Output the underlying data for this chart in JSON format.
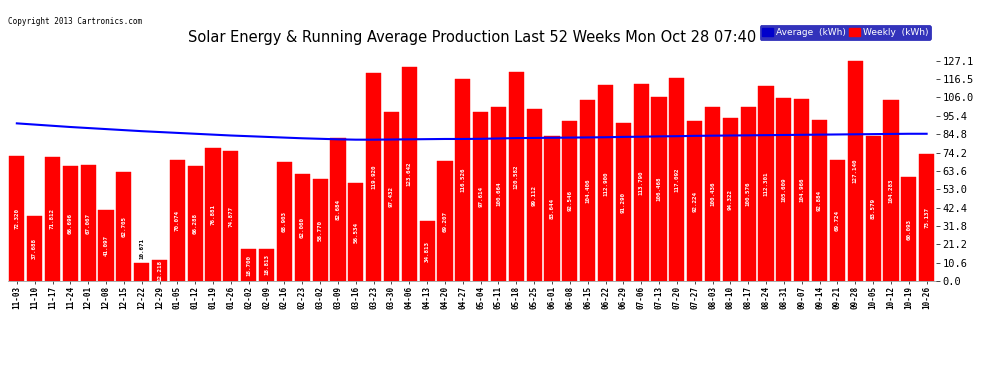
{
  "title": "Solar Energy & Running Average Production Last 52 Weeks Mon Oct 28 07:40",
  "copyright": "Copyright 2013 Cartronics.com",
  "bar_color": "#ff0000",
  "avg_line_color": "#0000ff",
  "background_color": "#ffffff",
  "plot_bg_color": "#ffffff",
  "grid_color": "#b0b0b0",
  "ylabel_right_values": [
    0.0,
    10.6,
    21.2,
    31.8,
    42.4,
    53.0,
    63.6,
    74.2,
    84.8,
    95.4,
    106.0,
    116.5,
    127.1
  ],
  "ylim": [
    0,
    134
  ],
  "legend_labels": [
    "Average  (kWh)",
    "Weekly  (kWh)"
  ],
  "legend_colors": [
    "#0000cc",
    "#ff0000"
  ],
  "categories": [
    "11-03",
    "11-10",
    "11-17",
    "11-24",
    "12-01",
    "12-08",
    "12-15",
    "12-22",
    "12-29",
    "01-05",
    "01-12",
    "01-19",
    "01-26",
    "02-02",
    "02-09",
    "02-16",
    "02-23",
    "03-02",
    "03-09",
    "03-16",
    "03-23",
    "03-30",
    "04-06",
    "04-13",
    "04-20",
    "04-27",
    "05-04",
    "05-11",
    "05-18",
    "05-25",
    "06-01",
    "06-08",
    "06-15",
    "06-22",
    "06-29",
    "07-06",
    "07-13",
    "07-20",
    "07-27",
    "08-03",
    "08-10",
    "08-17",
    "08-24",
    "08-31",
    "09-07",
    "09-14",
    "09-21",
    "09-28",
    "10-05",
    "10-12",
    "10-19",
    "10-26"
  ],
  "weekly_values": [
    72.32,
    37.688,
    71.812,
    66.696,
    67.067,
    41.097,
    62.705,
    10.671,
    12.218,
    70.074,
    66.288,
    76.881,
    74.877,
    18.7,
    18.813,
    68.903,
    62.06,
    58.77,
    82.684,
    56.534,
    119.92,
    97.432,
    123.642,
    34.813,
    69.207,
    116.526,
    97.614,
    100.664,
    120.582,
    99.112,
    83.644,
    92.546,
    104.406,
    112.9,
    91.29,
    113.79,
    106.468,
    117.092,
    92.224,
    100.436,
    94.322,
    100.576,
    112.301,
    105.609,
    104.966,
    92.884,
    69.724,
    127.14,
    83.579,
    104.283,
    60.093,
    73.137
  ],
  "avg_values": [
    91.0,
    90.3,
    89.6,
    88.9,
    88.3,
    87.7,
    87.1,
    86.5,
    86.0,
    85.5,
    85.0,
    84.5,
    84.0,
    83.6,
    83.2,
    82.8,
    82.4,
    82.1,
    81.8,
    81.6,
    81.6,
    81.7,
    81.8,
    81.9,
    82.0,
    82.0,
    82.1,
    82.3,
    82.5,
    82.6,
    82.7,
    82.8,
    82.9,
    83.0,
    83.2,
    83.3,
    83.5,
    83.6,
    83.8,
    83.9,
    84.0,
    84.1,
    84.2,
    84.3,
    84.4,
    84.5,
    84.6,
    84.7,
    84.8,
    84.9,
    85.0,
    85.0
  ]
}
